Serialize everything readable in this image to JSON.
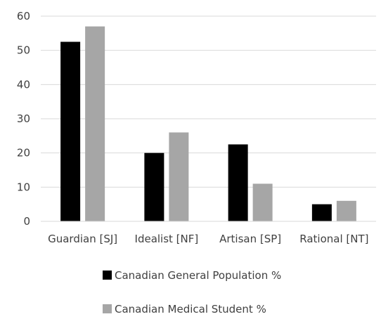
{
  "chart_data": {
    "type": "bar",
    "categories": [
      "Guardian [SJ]",
      "Idealist [NF]",
      "Artisan [SP]",
      "Rational [NT]"
    ],
    "series": [
      {
        "name": "Canadian General Population %",
        "values": [
          52.5,
          20,
          22.5,
          5
        ],
        "color": "#000000"
      },
      {
        "name": "Canadian Medical Student %",
        "values": [
          57,
          26,
          11,
          6
        ],
        "color": "#a6a6a6"
      }
    ],
    "yticks": [
      0,
      10,
      20,
      30,
      40,
      50,
      60
    ],
    "ylim": [
      0,
      60
    ],
    "grid": true,
    "legend_position": "bottom"
  }
}
